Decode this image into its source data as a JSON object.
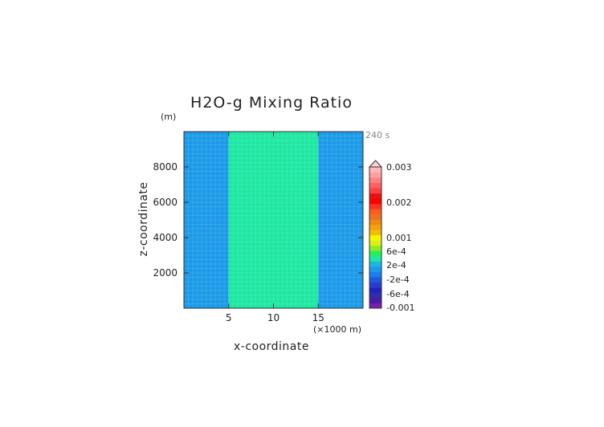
{
  "chart_data": {
    "type": "heatmap",
    "title": "H2O-g Mixing Ratio",
    "xlabel": "x-coordinate",
    "ylabel": "z-coordinate",
    "x_units": "(×1000 m)",
    "y_units": "(m)",
    "time_label": "240 s",
    "xlim": [
      0,
      20
    ],
    "ylim": [
      0,
      10000
    ],
    "x_ticks": [
      5,
      10,
      15
    ],
    "x_tick_labels": [
      "5",
      "10",
      "15"
    ],
    "y_ticks": [
      2000,
      4000,
      6000,
      8000
    ],
    "y_tick_labels": [
      "2000",
      "4000",
      "6000",
      "8000"
    ],
    "regions": [
      {
        "x_start": 0,
        "x_end": 5,
        "value": -0.0002,
        "color": "#1a9ae8"
      },
      {
        "x_start": 5,
        "x_end": 15,
        "value": 0.0002,
        "color": "#1de8a2"
      },
      {
        "x_start": 15,
        "x_end": 20,
        "value": -0.0002,
        "color": "#1a9ae8"
      }
    ],
    "colorbar": {
      "colors": [
        "#7a1fb0",
        "#4a1aa8",
        "#2e2ea8",
        "#2222c0",
        "#2a3cd0",
        "#1e5ae0",
        "#1a7ef0",
        "#1a9ae8",
        "#1ab8e0",
        "#1de8a2",
        "#22f060",
        "#8cec20",
        "#d6f018",
        "#f7f700",
        "#f0c000",
        "#f5a010",
        "#ef8a10",
        "#f07020",
        "#f85e1e",
        "#ff3020",
        "#ff0000",
        "#e81010",
        "#ff4040",
        "#ff6060",
        "#ff8080",
        "#ffa0a0",
        "#ffb8b8"
      ],
      "labels": [
        "0.003",
        "0.002",
        "0.001",
        "6e-4",
        "2e-4",
        "-2e-4",
        "-6e-4",
        "-0.001"
      ]
    }
  }
}
